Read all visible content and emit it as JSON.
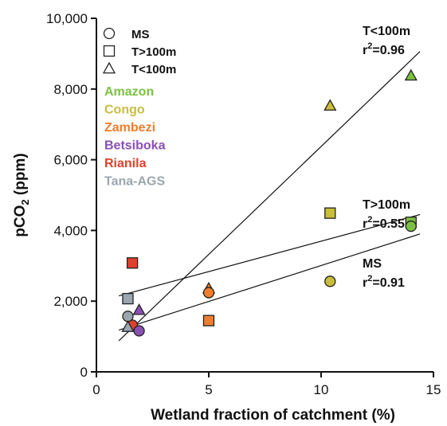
{
  "chart_data": {
    "type": "scatter",
    "xlabel": "Wetland fraction of catchment (%)",
    "ylabel_main": "pCO",
    "ylabel_sub": "2",
    "ylabel_unit": " (ppm)",
    "xlim": [
      0,
      15
    ],
    "ylim": [
      0,
      10000
    ],
    "xticks": [
      0,
      5,
      10,
      15
    ],
    "xtick_labels": [
      "0",
      "5",
      "10",
      "15"
    ],
    "yticks": [
      0,
      2000,
      4000,
      6000,
      8000,
      10000
    ],
    "ytick_labels": [
      "0",
      "2,000",
      "4,000",
      "6,000",
      "8,000",
      "10,000"
    ],
    "grid": false,
    "shape_legend": [
      {
        "shape": "circle",
        "label": "MS"
      },
      {
        "shape": "square",
        "label": "T>100m"
      },
      {
        "shape": "triangle",
        "label": "T<100m"
      }
    ],
    "rivers": [
      {
        "name": "Amazon",
        "color": "#7dc142"
      },
      {
        "name": "Congo",
        "color": "#c9bd3a"
      },
      {
        "name": "Zambezi",
        "color": "#ee7d2e"
      },
      {
        "name": "Betsiboka",
        "color": "#8a4fb3"
      },
      {
        "name": "Rianila",
        "color": "#e0412c"
      },
      {
        "name": "Tana-AGS",
        "color": "#9ba6ae"
      }
    ],
    "points": [
      {
        "river": "Amazon",
        "shape": "triangle",
        "x": 14.0,
        "y": 8380
      },
      {
        "river": "Amazon",
        "shape": "square",
        "x": 14.0,
        "y": 4230
      },
      {
        "river": "Amazon",
        "shape": "circle",
        "x": 14.0,
        "y": 4120
      },
      {
        "river": "Congo",
        "shape": "triangle",
        "x": 10.4,
        "y": 7530
      },
      {
        "river": "Congo",
        "shape": "square",
        "x": 10.4,
        "y": 4490
      },
      {
        "river": "Congo",
        "shape": "circle",
        "x": 10.4,
        "y": 2560
      },
      {
        "river": "Zambezi",
        "shape": "triangle",
        "x": 5.0,
        "y": 2360
      },
      {
        "river": "Zambezi",
        "shape": "circle",
        "x": 5.0,
        "y": 2240
      },
      {
        "river": "Zambezi",
        "shape": "square",
        "x": 5.0,
        "y": 1450
      },
      {
        "river": "Rianila",
        "shape": "square",
        "x": 1.6,
        "y": 3080
      },
      {
        "river": "Rianila",
        "shape": "circle",
        "x": 1.6,
        "y": 1320
      },
      {
        "river": "Tana-AGS",
        "shape": "square",
        "x": 1.4,
        "y": 2070
      },
      {
        "river": "Tana-AGS",
        "shape": "circle",
        "x": 1.4,
        "y": 1570
      },
      {
        "river": "Tana-AGS",
        "shape": "triangle",
        "x": 1.4,
        "y": 1270
      },
      {
        "river": "Betsiboka",
        "shape": "triangle",
        "x": 1.9,
        "y": 1750
      },
      {
        "river": "Betsiboka",
        "shape": "circle",
        "x": 1.9,
        "y": 1160
      }
    ],
    "fits": [
      {
        "name": "T<100m",
        "x": [
          1.0,
          14.4
        ],
        "y": [
          880,
          9060
        ],
        "annot_label": "T<100m",
        "r2_prefix": "r",
        "r2_sup": "2",
        "r2_value": "=0.96"
      },
      {
        "name": "T>100m",
        "x": [
          1.0,
          14.4
        ],
        "y": [
          2150,
          4450
        ],
        "annot_label": "T>100m",
        "r2_prefix": "r",
        "r2_sup": "2",
        "r2_value": "=0.55"
      },
      {
        "name": "MS",
        "x": [
          1.0,
          14.4
        ],
        "y": [
          1180,
          3900
        ],
        "annot_label": "MS",
        "r2_prefix": "r",
        "r2_sup": "2",
        "r2_value": "=0.91"
      }
    ]
  }
}
